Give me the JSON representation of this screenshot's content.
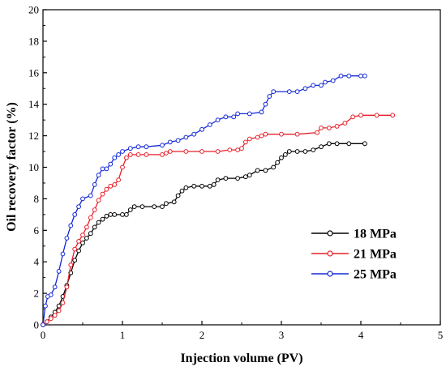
{
  "chart_data": {
    "type": "line",
    "xlabel": "Injection volume (PV)",
    "ylabel": "Oil recovery factor (%)",
    "xlim": [
      0,
      5
    ],
    "ylim": [
      0,
      20
    ],
    "xticks": [
      "0",
      "1",
      "2",
      "3",
      "4",
      "5"
    ],
    "yticks": [
      "0",
      "2",
      "4",
      "6",
      "8",
      "10",
      "12",
      "14",
      "16",
      "18",
      "20"
    ],
    "grid": false,
    "legend_position": "right",
    "series": [
      {
        "name": "18 MPa",
        "color": "#000000",
        "points": [
          [
            0.0,
            0.0
          ],
          [
            0.05,
            0.2
          ],
          [
            0.1,
            0.5
          ],
          [
            0.15,
            0.8
          ],
          [
            0.2,
            1.2
          ],
          [
            0.25,
            1.8
          ],
          [
            0.3,
            2.5
          ],
          [
            0.35,
            3.3
          ],
          [
            0.4,
            4.1
          ],
          [
            0.45,
            4.7
          ],
          [
            0.5,
            5.2
          ],
          [
            0.55,
            5.5
          ],
          [
            0.6,
            5.8
          ],
          [
            0.65,
            6.2
          ],
          [
            0.7,
            6.5
          ],
          [
            0.75,
            6.7
          ],
          [
            0.8,
            6.9
          ],
          [
            0.85,
            7.0
          ],
          [
            0.9,
            7.0
          ],
          [
            1.0,
            7.0
          ],
          [
            1.05,
            7.0
          ],
          [
            1.1,
            7.3
          ],
          [
            1.15,
            7.5
          ],
          [
            1.25,
            7.5
          ],
          [
            1.4,
            7.5
          ],
          [
            1.5,
            7.5
          ],
          [
            1.55,
            7.7
          ],
          [
            1.65,
            7.8
          ],
          [
            1.7,
            8.2
          ],
          [
            1.75,
            8.5
          ],
          [
            1.8,
            8.7
          ],
          [
            1.9,
            8.8
          ],
          [
            2.0,
            8.8
          ],
          [
            2.1,
            8.8
          ],
          [
            2.15,
            8.9
          ],
          [
            2.2,
            9.2
          ],
          [
            2.3,
            9.3
          ],
          [
            2.45,
            9.3
          ],
          [
            2.55,
            9.4
          ],
          [
            2.6,
            9.5
          ],
          [
            2.7,
            9.8
          ],
          [
            2.8,
            9.8
          ],
          [
            2.9,
            10.0
          ],
          [
            2.95,
            10.3
          ],
          [
            3.0,
            10.6
          ],
          [
            3.05,
            10.8
          ],
          [
            3.1,
            11.0
          ],
          [
            3.2,
            11.0
          ],
          [
            3.3,
            11.0
          ],
          [
            3.4,
            11.1
          ],
          [
            3.5,
            11.3
          ],
          [
            3.6,
            11.5
          ],
          [
            3.7,
            11.5
          ],
          [
            3.85,
            11.5
          ],
          [
            4.05,
            11.5
          ]
        ]
      },
      {
        "name": "21 MPa",
        "color": "#e8202a",
        "points": [
          [
            0.0,
            0.0
          ],
          [
            0.05,
            0.2
          ],
          [
            0.1,
            0.4
          ],
          [
            0.15,
            0.6
          ],
          [
            0.2,
            0.9
          ],
          [
            0.25,
            1.4
          ],
          [
            0.3,
            2.4
          ],
          [
            0.35,
            3.8
          ],
          [
            0.4,
            4.8
          ],
          [
            0.45,
            5.3
          ],
          [
            0.5,
            5.7
          ],
          [
            0.55,
            6.2
          ],
          [
            0.6,
            6.8
          ],
          [
            0.65,
            7.3
          ],
          [
            0.7,
            7.9
          ],
          [
            0.75,
            8.3
          ],
          [
            0.8,
            8.6
          ],
          [
            0.85,
            8.8
          ],
          [
            0.9,
            8.9
          ],
          [
            0.95,
            9.2
          ],
          [
            1.0,
            10.0
          ],
          [
            1.05,
            10.6
          ],
          [
            1.1,
            10.8
          ],
          [
            1.2,
            10.8
          ],
          [
            1.3,
            10.8
          ],
          [
            1.5,
            10.8
          ],
          [
            1.55,
            10.9
          ],
          [
            1.6,
            11.0
          ],
          [
            1.8,
            11.0
          ],
          [
            2.0,
            11.0
          ],
          [
            2.2,
            11.0
          ],
          [
            2.35,
            11.1
          ],
          [
            2.45,
            11.1
          ],
          [
            2.5,
            11.2
          ],
          [
            2.55,
            11.6
          ],
          [
            2.6,
            11.8
          ],
          [
            2.7,
            11.9
          ],
          [
            2.75,
            12.0
          ],
          [
            2.8,
            12.1
          ],
          [
            3.0,
            12.1
          ],
          [
            3.2,
            12.1
          ],
          [
            3.45,
            12.2
          ],
          [
            3.5,
            12.5
          ],
          [
            3.6,
            12.5
          ],
          [
            3.7,
            12.6
          ],
          [
            3.8,
            12.8
          ],
          [
            3.9,
            13.2
          ],
          [
            4.0,
            13.3
          ],
          [
            4.2,
            13.3
          ],
          [
            4.4,
            13.3
          ]
        ]
      },
      {
        "name": "25 MPa",
        "color": "#1428d8",
        "points": [
          [
            0.0,
            0.0
          ],
          [
            0.03,
            1.2
          ],
          [
            0.06,
            1.8
          ],
          [
            0.1,
            1.9
          ],
          [
            0.15,
            2.4
          ],
          [
            0.2,
            3.4
          ],
          [
            0.25,
            4.5
          ],
          [
            0.3,
            5.5
          ],
          [
            0.35,
            6.3
          ],
          [
            0.4,
            7.0
          ],
          [
            0.45,
            7.5
          ],
          [
            0.5,
            8.0
          ],
          [
            0.6,
            8.2
          ],
          [
            0.65,
            8.9
          ],
          [
            0.7,
            9.5
          ],
          [
            0.75,
            9.9
          ],
          [
            0.8,
            9.9
          ],
          [
            0.85,
            10.2
          ],
          [
            0.9,
            10.6
          ],
          [
            0.95,
            10.8
          ],
          [
            1.0,
            11.0
          ],
          [
            1.1,
            11.2
          ],
          [
            1.2,
            11.3
          ],
          [
            1.3,
            11.3
          ],
          [
            1.5,
            11.4
          ],
          [
            1.6,
            11.6
          ],
          [
            1.7,
            11.7
          ],
          [
            1.8,
            11.9
          ],
          [
            1.9,
            12.1
          ],
          [
            2.0,
            12.4
          ],
          [
            2.1,
            12.7
          ],
          [
            2.2,
            13.0
          ],
          [
            2.3,
            13.2
          ],
          [
            2.4,
            13.2
          ],
          [
            2.45,
            13.4
          ],
          [
            2.6,
            13.4
          ],
          [
            2.75,
            13.5
          ],
          [
            2.8,
            14.0
          ],
          [
            2.85,
            14.5
          ],
          [
            2.9,
            14.8
          ],
          [
            3.1,
            14.8
          ],
          [
            3.2,
            14.8
          ],
          [
            3.3,
            15.0
          ],
          [
            3.4,
            15.2
          ],
          [
            3.5,
            15.2
          ],
          [
            3.55,
            15.4
          ],
          [
            3.65,
            15.5
          ],
          [
            3.75,
            15.8
          ],
          [
            3.85,
            15.8
          ],
          [
            4.0,
            15.8
          ],
          [
            4.05,
            15.8
          ]
        ]
      }
    ]
  }
}
